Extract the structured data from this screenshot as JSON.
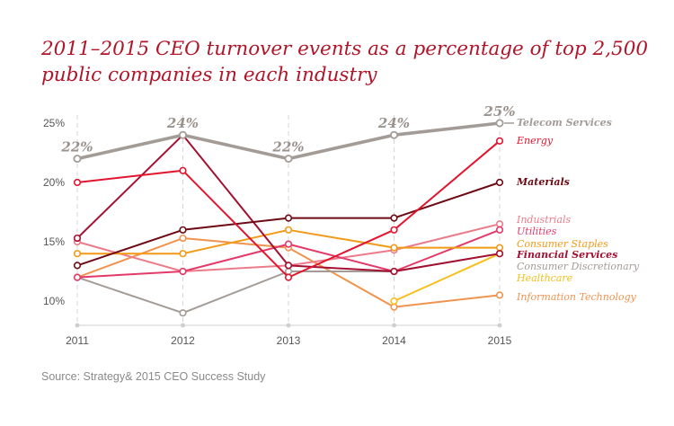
{
  "chart_data": {
    "type": "line",
    "title_lines": [
      "2011–2015 CEO turnover events as a percentage of top 2,500",
      "public companies in each industry"
    ],
    "source": "Source: Strategy& 2015 CEO Success Study",
    "x": [
      "2011",
      "2012",
      "2013",
      "2014",
      "2015"
    ],
    "ylim": [
      8,
      26
    ],
    "yticks": [
      {
        "value": 10,
        "label": "10%"
      },
      {
        "value": 15,
        "label": "15%"
      },
      {
        "value": 20,
        "label": "20%"
      },
      {
        "value": 25,
        "label": "25%"
      }
    ],
    "grid": "vertical dashed",
    "series": [
      {
        "name": "Information Technology",
        "color": "#f0934f",
        "values": [
          12.0,
          15.3,
          14.5,
          9.5,
          10.5
        ]
      },
      {
        "name": "Healthcare",
        "color": "#f7bf1b",
        "values": [
          null,
          null,
          null,
          10.0,
          14.0
        ]
      },
      {
        "name": "Consumer Discretionary",
        "color": "#a39b96",
        "values": [
          12.0,
          9.0,
          12.5,
          12.5,
          14.0
        ]
      },
      {
        "name": "Industrials",
        "color": "#ec7b8a",
        "values": [
          15.0,
          12.5,
          13.0,
          14.3,
          16.5
        ]
      },
      {
        "name": "Utilities",
        "color": "#e33a6a",
        "values": [
          12.0,
          12.5,
          14.8,
          12.5,
          16.0
        ]
      },
      {
        "name": "Consumer Staples",
        "color": "#f29a17",
        "values": [
          14.0,
          14.0,
          16.0,
          14.5,
          14.5
        ]
      },
      {
        "name": "Financial Services",
        "color": "#a31030",
        "values": [
          15.3,
          24.0,
          13.0,
          12.5,
          14.0
        ]
      },
      {
        "name": "Materials",
        "color": "#6e0a14",
        "values": [
          13.0,
          16.0,
          17.0,
          17.0,
          20.0
        ]
      },
      {
        "name": "Energy",
        "color": "#e1152d",
        "values": [
          20.0,
          21.0,
          12.0,
          16.0,
          23.5
        ]
      },
      {
        "name": "Telecom Services",
        "color": "#a39b96",
        "values": [
          22.0,
          24.0,
          22.0,
          24.0,
          25.0
        ],
        "point_labels": [
          "22%",
          "24%",
          "22%",
          "24%",
          "25%"
        ]
      }
    ]
  }
}
